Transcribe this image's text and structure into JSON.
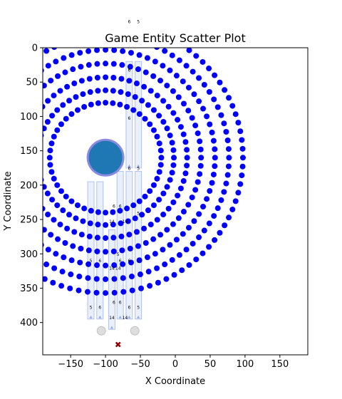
{
  "chart_data": {
    "type": "scatter",
    "title": "Game Entity Scatter Plot",
    "xlabel": "X Coordinate",
    "ylabel": "Y Coordinate",
    "xlim": [
      -190,
      190
    ],
    "ylim": [
      447,
      0
    ],
    "y_inverted": true,
    "grid": false,
    "x_ticks": [
      -150,
      -100,
      -50,
      0,
      50,
      100,
      150
    ],
    "y_ticks": [
      0,
      50,
      100,
      150,
      200,
      250,
      300,
      350,
      400
    ],
    "rings": {
      "color": "#0000ff",
      "center": [
        -100,
        160
      ],
      "radii": [
        80,
        98,
        117,
        137,
        157,
        177,
        197
      ],
      "points_per_ring": [
        48,
        56,
        64,
        72,
        80,
        88,
        96
      ]
    },
    "player": {
      "x": -100,
      "y": 160,
      "color": "#1f77b4",
      "edge_color": "#8a8ae0"
    },
    "target": {
      "x": -82,
      "y": 432,
      "marker": "x",
      "color": "#8b0000"
    },
    "gray_markers": [
      {
        "x": -106,
        "y": 412
      },
      {
        "x": -58,
        "y": 412
      }
    ],
    "columns": [
      {
        "x": -121,
        "top": 195,
        "bottom": 395,
        "label": "5"
      },
      {
        "x": -108,
        "top": 195,
        "bottom": 395,
        "label": "6"
      },
      {
        "x": -91,
        "top": 265,
        "bottom": 410,
        "label": "14"
      },
      {
        "x": -79,
        "top": 180,
        "bottom": 395,
        "label": "6"
      },
      {
        "x": -66,
        "top": 180,
        "bottom": 395,
        "label": "6"
      },
      {
        "x": -53,
        "top": 180,
        "bottom": 395,
        "label": "5"
      },
      {
        "x": -66,
        "top": 20,
        "bottom": 175,
        "label": "6"
      },
      {
        "x": -53,
        "top": 20,
        "bottom": 175,
        "label": "5"
      }
    ],
    "small_labels": [
      {
        "x": -66,
        "y": -36,
        "text": "6"
      },
      {
        "x": -53,
        "y": -36,
        "text": "5"
      },
      {
        "x": -66,
        "y": 35,
        "text": "6"
      },
      {
        "x": -66,
        "y": 105,
        "text": "6"
      },
      {
        "x": -66,
        "y": 178,
        "text": "6"
      },
      {
        "x": -53,
        "y": 178,
        "text": "5"
      },
      {
        "x": -121,
        "y": 312,
        "text": "5"
      },
      {
        "x": -108,
        "y": 312,
        "text": "6"
      },
      {
        "x": -66,
        "y": 312,
        "text": "6"
      },
      {
        "x": -53,
        "y": 312,
        "text": "5"
      },
      {
        "x": -91,
        "y": 323,
        "text": "14"
      },
      {
        "x": -91,
        "y": 255,
        "text": "14"
      },
      {
        "x": -72,
        "y": 255,
        "text": "14"
      },
      {
        "x": -79,
        "y": 233,
        "text": "6"
      },
      {
        "x": -88,
        "y": 233,
        "text": "6"
      },
      {
        "x": -53,
        "y": 243,
        "text": "5"
      },
      {
        "x": -82,
        "y": 303,
        "text": "5"
      },
      {
        "x": -79,
        "y": 312,
        "text": "6"
      },
      {
        "x": -82,
        "y": 323,
        "text": "14"
      },
      {
        "x": -121,
        "y": 380,
        "text": "5"
      },
      {
        "x": -108,
        "y": 380,
        "text": "6"
      },
      {
        "x": -88,
        "y": 373,
        "text": "6"
      },
      {
        "x": -79,
        "y": 373,
        "text": "6"
      },
      {
        "x": -66,
        "y": 380,
        "text": "6"
      },
      {
        "x": -53,
        "y": 380,
        "text": "5"
      },
      {
        "x": -91,
        "y": 395,
        "text": "14"
      },
      {
        "x": -72,
        "y": 395,
        "text": "14"
      }
    ]
  }
}
